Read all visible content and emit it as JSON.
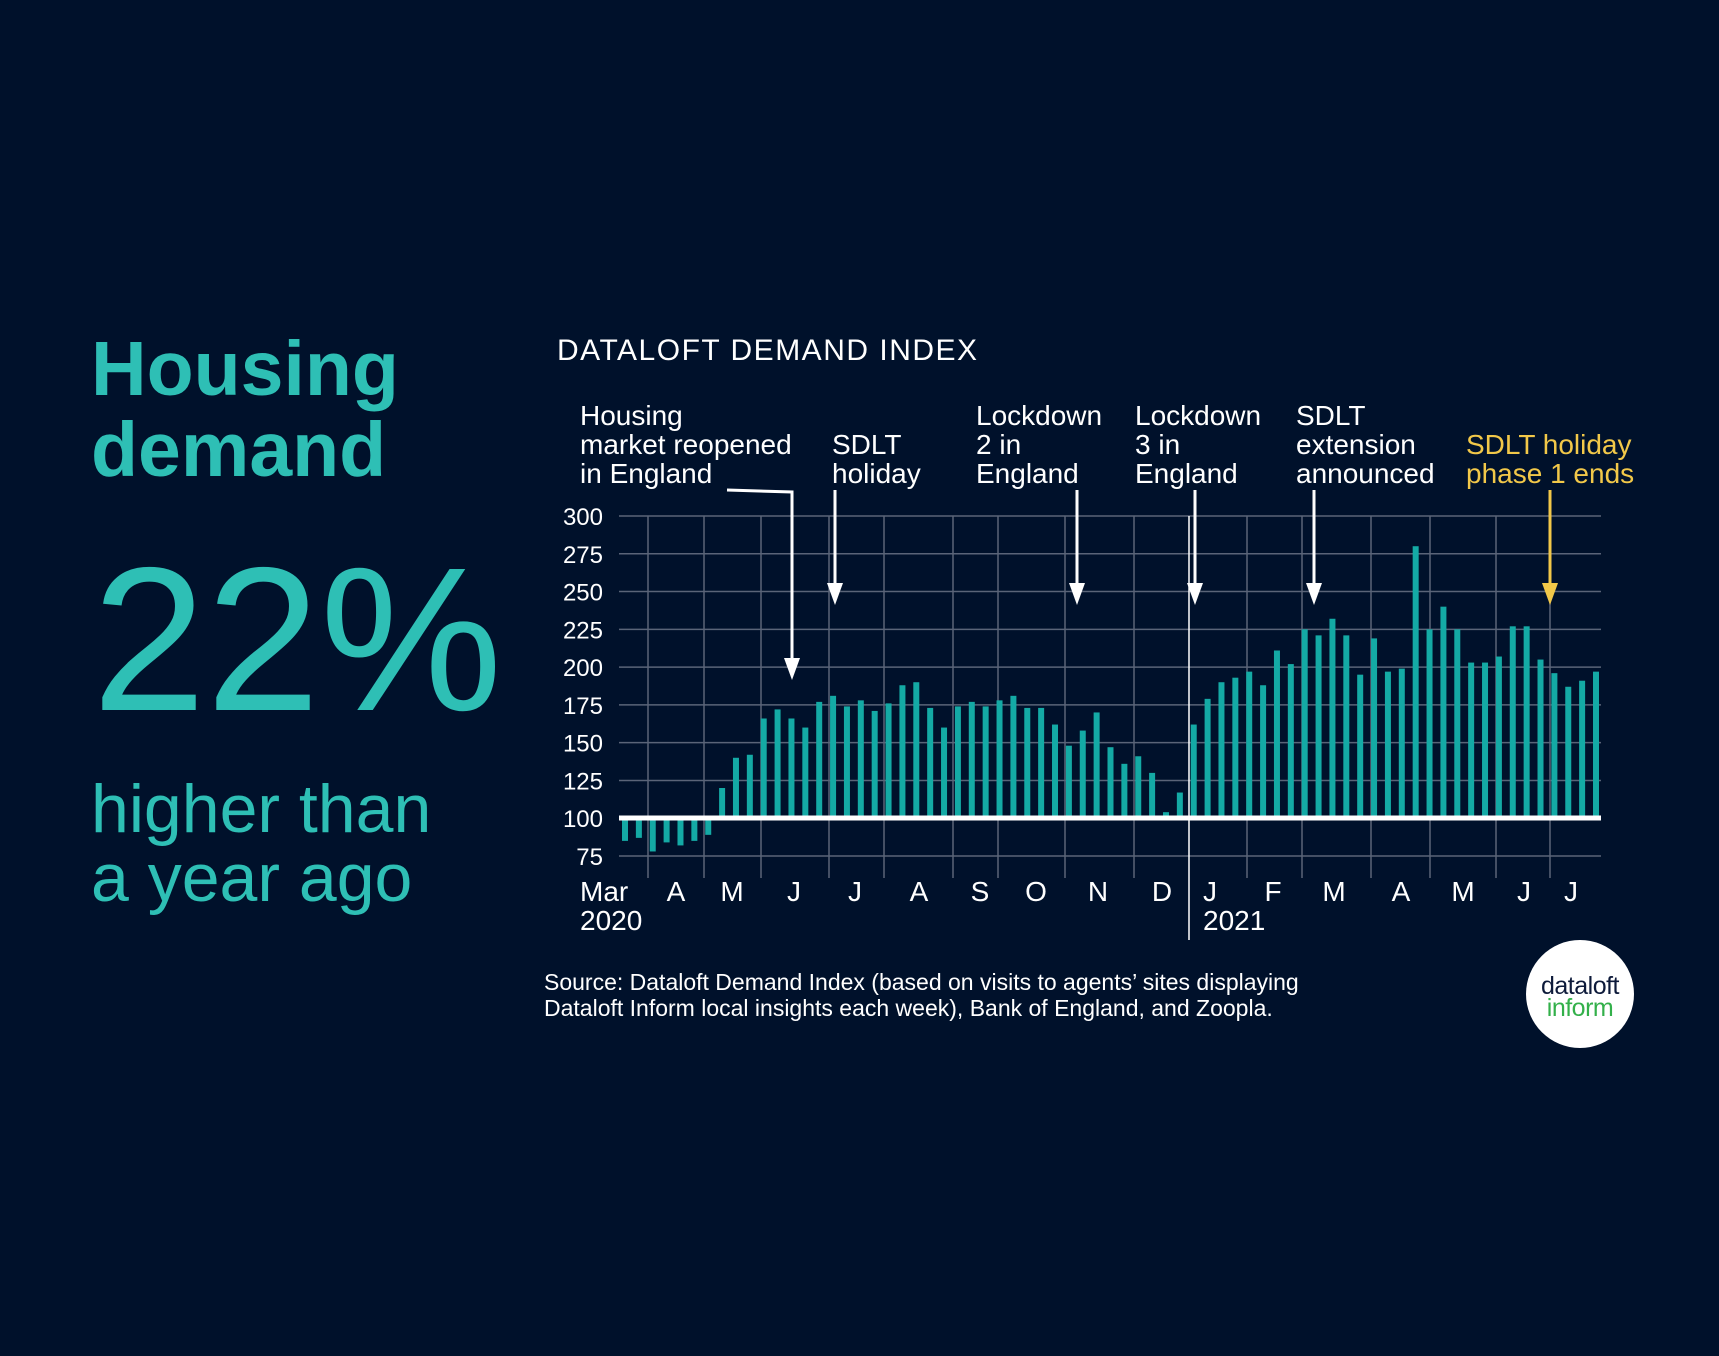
{
  "headline": {
    "line1": "Housing",
    "line2": "demand"
  },
  "stat": {
    "value": "22%",
    "line1": "higher than",
    "line2": "a year ago"
  },
  "colors": {
    "background": "#00112b",
    "accent": "#2ebfb5",
    "bars": "#14aaa5",
    "highlight": "#f2c849"
  },
  "chart_data": {
    "type": "bar",
    "title": "DATALOFT DEMAND INDEX",
    "baseline": 100,
    "ylim": [
      75,
      300
    ],
    "yticks": [
      "300",
      "275",
      "250",
      "225",
      "200",
      "175",
      "150",
      "125",
      "100",
      "75"
    ],
    "xticks": [
      {
        "label": "Mar",
        "sub": "2020"
      },
      {
        "label": "A"
      },
      {
        "label": "M"
      },
      {
        "label": "J"
      },
      {
        "label": "J"
      },
      {
        "label": "A"
      },
      {
        "label": "S"
      },
      {
        "label": "O"
      },
      {
        "label": "N"
      },
      {
        "label": "D"
      },
      {
        "label": "J",
        "sub": "2021"
      },
      {
        "label": "F"
      },
      {
        "label": "M"
      },
      {
        "label": "A"
      },
      {
        "label": "M"
      },
      {
        "label": "J"
      },
      {
        "label": "J"
      }
    ],
    "grid": true,
    "values": [
      85,
      87,
      78,
      84,
      82,
      85,
      89,
      120,
      140,
      142,
      166,
      172,
      166,
      160,
      177,
      181,
      174,
      178,
      171,
      176,
      188,
      190,
      173,
      160,
      174,
      177,
      174,
      178,
      181,
      173,
      173,
      162,
      148,
      158,
      170,
      147,
      136,
      141,
      130,
      104,
      117,
      162,
      179,
      190,
      193,
      197,
      188,
      211,
      202,
      225,
      221,
      232,
      221,
      195,
      219,
      197,
      199,
      280,
      225,
      240,
      225,
      203,
      203,
      207,
      227,
      227,
      205,
      196,
      187,
      191,
      197
    ],
    "annotations": [
      {
        "lines": [
          "Housing",
          "market reopened",
          "in England"
        ],
        "color": "white"
      },
      {
        "lines": [
          "SDLT",
          "holiday"
        ],
        "color": "white"
      },
      {
        "lines": [
          "Lockdown",
          "2 in",
          "England"
        ],
        "color": "white"
      },
      {
        "lines": [
          "Lockdown",
          "3 in",
          "England"
        ],
        "color": "white"
      },
      {
        "lines": [
          "SDLT",
          "extension",
          "announced"
        ],
        "color": "white"
      },
      {
        "lines": [
          "SDLT holiday",
          "phase 1 ends"
        ],
        "color": "yellow"
      }
    ]
  },
  "source": {
    "line1": "Source: Dataloft Demand Index (based on visits to agents’ sites displaying",
    "line2": "Dataloft Inform local insights each week), Bank of England, and Zoopla."
  },
  "logo": {
    "line1": "dataloft",
    "line2": "inform"
  }
}
